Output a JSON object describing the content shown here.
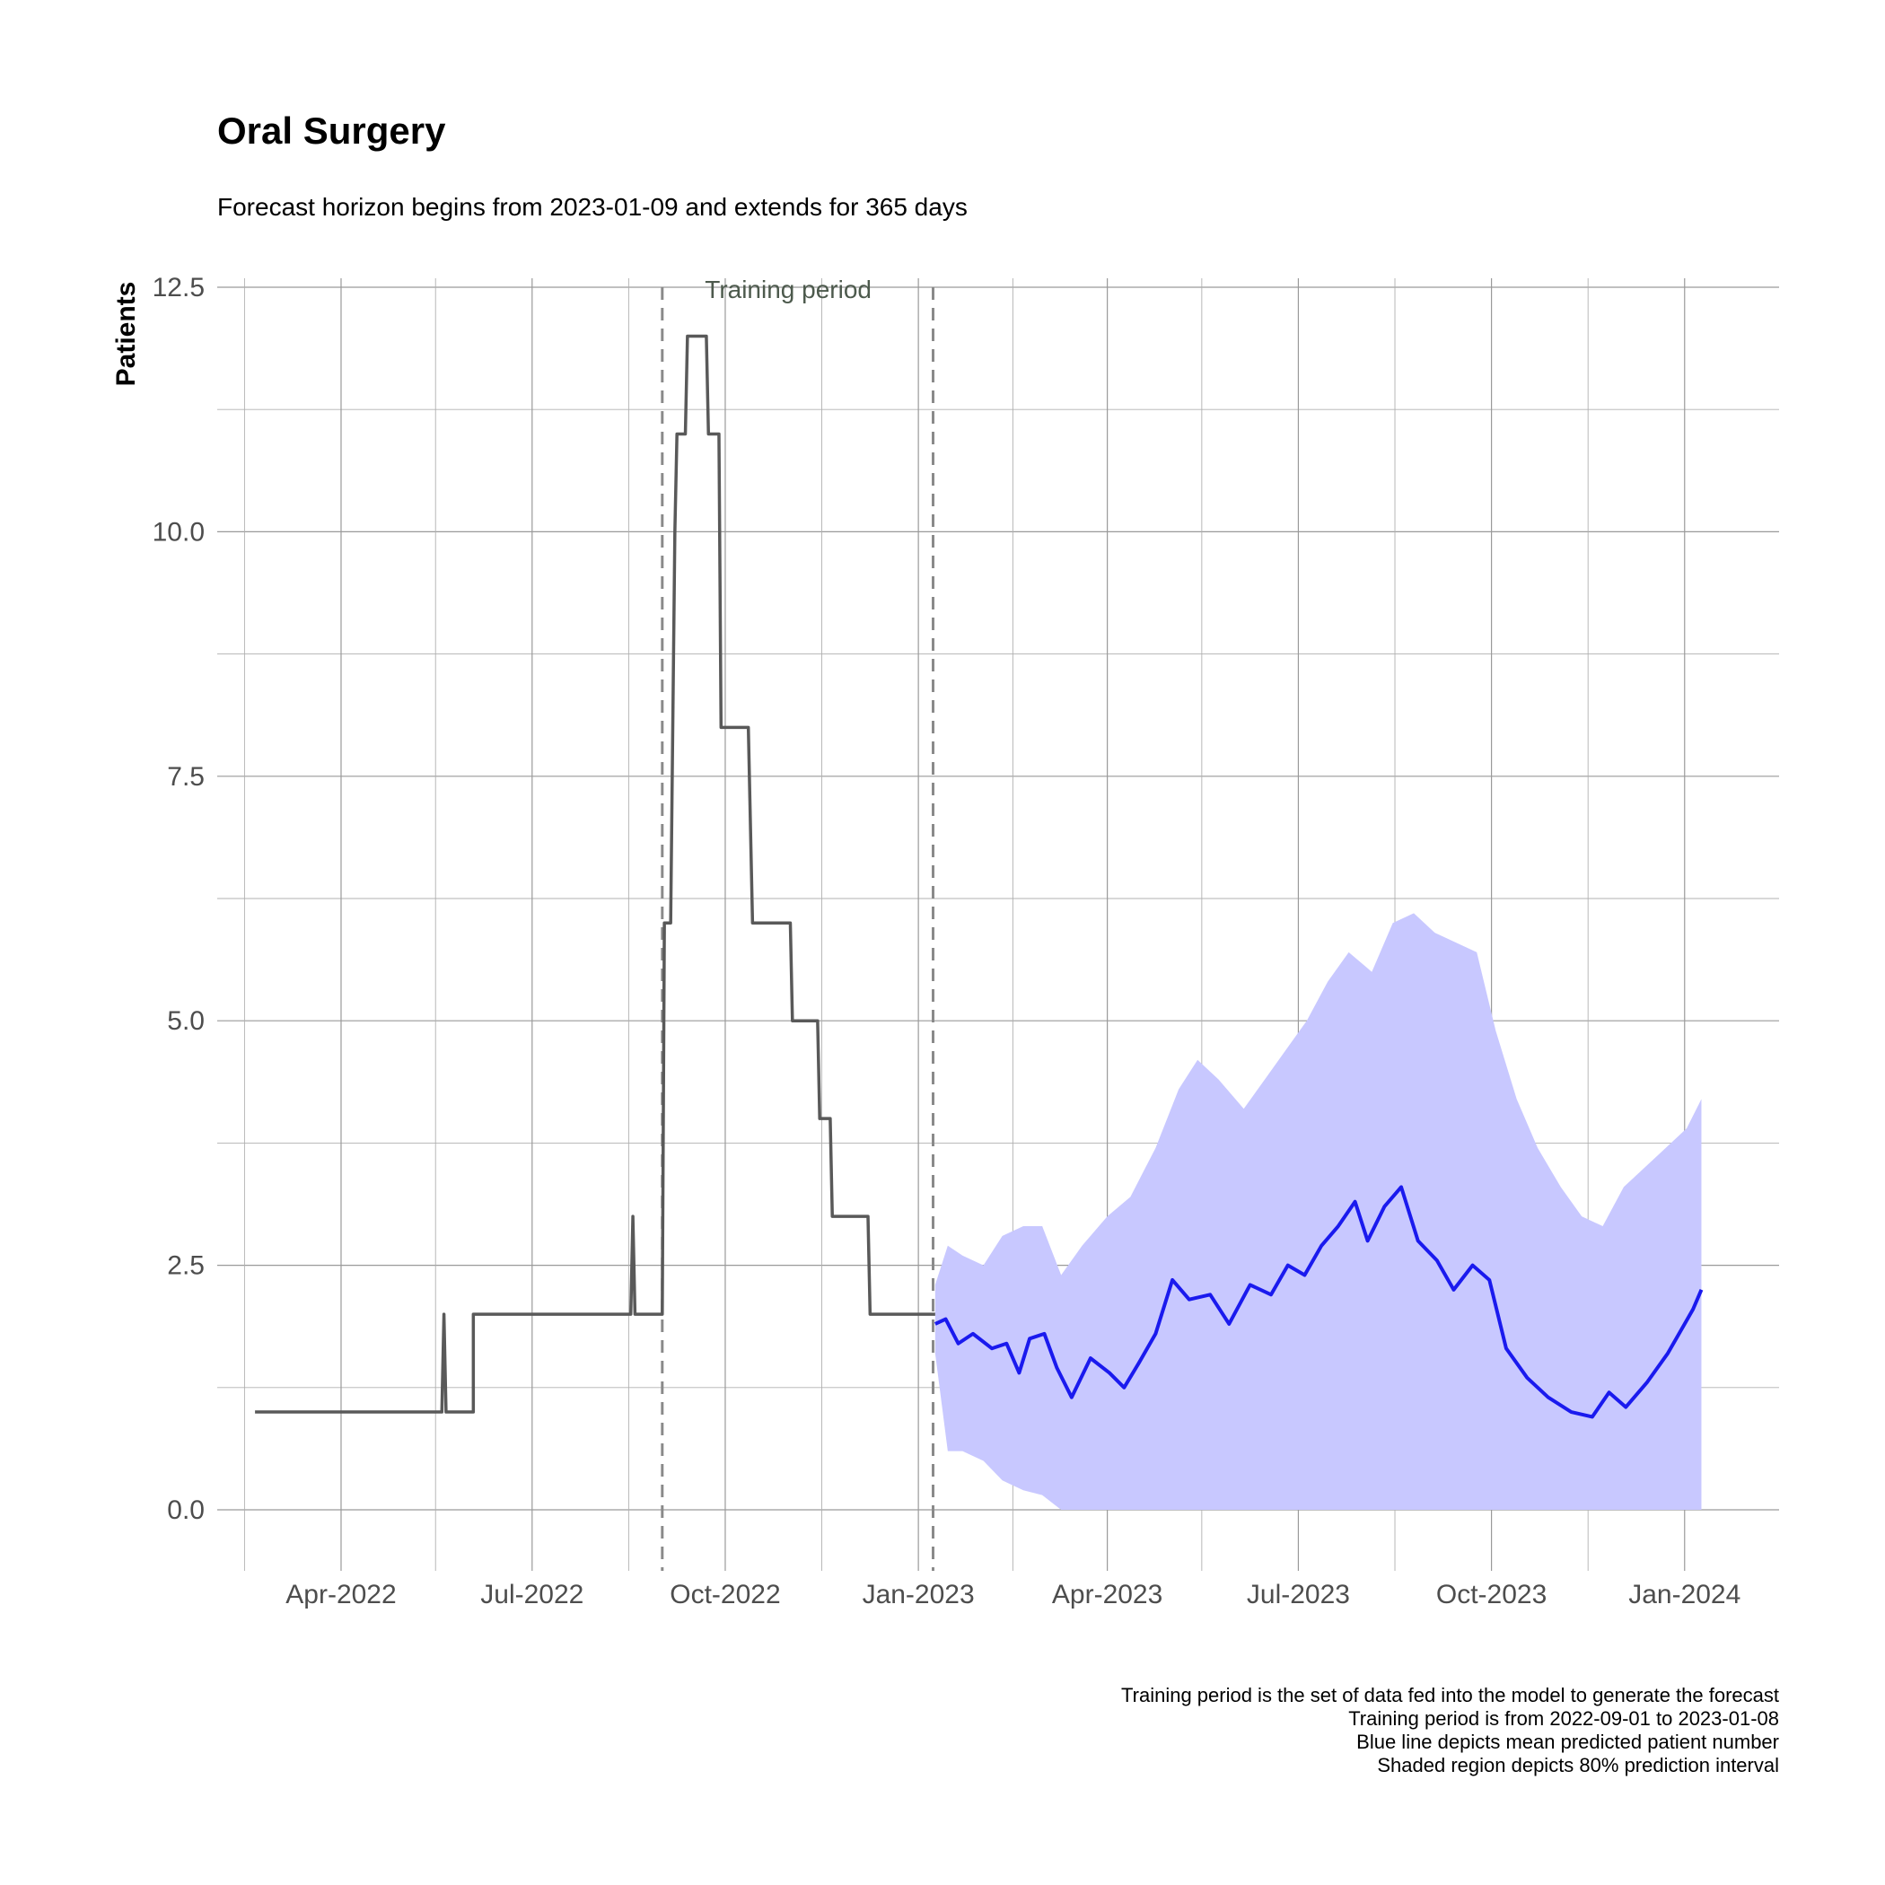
{
  "chart_data": {
    "type": "line",
    "title": "Oral Surgery",
    "subtitle": "Forecast horizon begins from 2023-01-09 and extends for 365 days",
    "xlabel": "",
    "ylabel": "Patients",
    "xlim": [
      "2022-02-01",
      "2024-02-15"
    ],
    "ylim": [
      0,
      12.5
    ],
    "y_ticks": [
      0.0,
      2.5,
      5.0,
      7.5,
      10.0,
      12.5
    ],
    "y_tick_labels": [
      "0.0",
      "2.5",
      "5.0",
      "7.5",
      "10.0",
      "12.5"
    ],
    "x_ticks": [
      "2022-04-01",
      "2022-07-01",
      "2022-10-01",
      "2023-01-01",
      "2023-04-01",
      "2023-07-01",
      "2023-10-01",
      "2024-01-01"
    ],
    "x_tick_labels": [
      "Apr-2022",
      "Jul-2022",
      "Oct-2022",
      "Jan-2023",
      "Apr-2023",
      "Jul-2023",
      "Oct-2023",
      "Jan-2024"
    ],
    "grid": true,
    "vlines": [
      {
        "x": "2022-09-01",
        "style": "dashed"
      },
      {
        "x": "2023-01-08",
        "style": "dashed"
      }
    ],
    "annotation": {
      "text": "Training period",
      "x": "2022-10-31",
      "y": 12.5
    },
    "caption": [
      "Training period is the set of data fed into the model to generate the forecast",
      "Training period is from 2022-09-01 to 2023-01-08",
      "Blue line depicts mean predicted patient number",
      "Shaded region depicts 80% prediction interval"
    ],
    "series": [
      {
        "role": "observed",
        "color": "#595959",
        "step": true,
        "points": [
          [
            "2022-02-19",
            1
          ],
          [
            "2022-05-19",
            1
          ],
          [
            "2022-05-20",
            2
          ],
          [
            "2022-05-21",
            1
          ],
          [
            "2022-06-03",
            1
          ],
          [
            "2022-06-03",
            2
          ],
          [
            "2022-08-17",
            2
          ],
          [
            "2022-08-18",
            3
          ],
          [
            "2022-08-19",
            2
          ],
          [
            "2022-09-01",
            2
          ],
          [
            "2022-09-02",
            6
          ],
          [
            "2022-09-05",
            6
          ],
          [
            "2022-09-07",
            10
          ],
          [
            "2022-09-08",
            11
          ],
          [
            "2022-09-12",
            11
          ],
          [
            "2022-09-13",
            12
          ],
          [
            "2022-09-22",
            12
          ],
          [
            "2022-09-23",
            11
          ],
          [
            "2022-09-28",
            11
          ],
          [
            "2022-09-29",
            8
          ],
          [
            "2022-10-12",
            8
          ],
          [
            "2022-10-14",
            6
          ],
          [
            "2022-11-01",
            6
          ],
          [
            "2022-11-02",
            5
          ],
          [
            "2022-11-14",
            5
          ],
          [
            "2022-11-15",
            4
          ],
          [
            "2022-11-20",
            4
          ],
          [
            "2022-11-21",
            3
          ],
          [
            "2022-12-08",
            3
          ],
          [
            "2022-12-09",
            2
          ],
          [
            "2023-01-09",
            2
          ]
        ]
      },
      {
        "role": "forecast-mean",
        "color": "#1a1aee",
        "points": [
          [
            "2023-01-09",
            1.9
          ],
          [
            "2023-01-14",
            1.95
          ],
          [
            "2023-01-20",
            1.7
          ],
          [
            "2023-01-27",
            1.8
          ],
          [
            "2023-02-05",
            1.65
          ],
          [
            "2023-02-12",
            1.7
          ],
          [
            "2023-02-18",
            1.4
          ],
          [
            "2023-02-23",
            1.75
          ],
          [
            "2023-03-02",
            1.8
          ],
          [
            "2023-03-08",
            1.45
          ],
          [
            "2023-03-15",
            1.15
          ],
          [
            "2023-03-24",
            1.55
          ],
          [
            "2023-04-02",
            1.4
          ],
          [
            "2023-04-09",
            1.25
          ],
          [
            "2023-04-16",
            1.5
          ],
          [
            "2023-04-24",
            1.8
          ],
          [
            "2023-05-02",
            2.35
          ],
          [
            "2023-05-10",
            2.15
          ],
          [
            "2023-05-20",
            2.2
          ],
          [
            "2023-05-29",
            1.9
          ],
          [
            "2023-06-08",
            2.3
          ],
          [
            "2023-06-18",
            2.2
          ],
          [
            "2023-06-26",
            2.5
          ],
          [
            "2023-07-04",
            2.4
          ],
          [
            "2023-07-12",
            2.7
          ],
          [
            "2023-07-20",
            2.9
          ],
          [
            "2023-07-28",
            3.15
          ],
          [
            "2023-08-03",
            2.75
          ],
          [
            "2023-08-11",
            3.1
          ],
          [
            "2023-08-19",
            3.3
          ],
          [
            "2023-08-27",
            2.75
          ],
          [
            "2023-09-05",
            2.55
          ],
          [
            "2023-09-13",
            2.25
          ],
          [
            "2023-09-22",
            2.5
          ],
          [
            "2023-09-30",
            2.35
          ],
          [
            "2023-10-08",
            1.65
          ],
          [
            "2023-10-18",
            1.35
          ],
          [
            "2023-10-28",
            1.15
          ],
          [
            "2023-11-08",
            1.0
          ],
          [
            "2023-11-18",
            0.95
          ],
          [
            "2023-11-26",
            1.2
          ],
          [
            "2023-12-04",
            1.05
          ],
          [
            "2023-12-14",
            1.3
          ],
          [
            "2023-12-24",
            1.6
          ],
          [
            "2024-01-01",
            1.9
          ],
          [
            "2024-01-05",
            2.05
          ],
          [
            "2024-01-09",
            2.25
          ]
        ]
      },
      {
        "role": "prediction-interval-80",
        "color": "#c8c8ff",
        "points": [
          [
            "2023-01-09",
            1.6,
            2.3
          ],
          [
            "2023-01-15",
            0.6,
            2.7
          ],
          [
            "2023-01-22",
            0.6,
            2.6
          ],
          [
            "2023-02-01",
            0.5,
            2.5
          ],
          [
            "2023-02-10",
            0.3,
            2.8
          ],
          [
            "2023-02-20",
            0.2,
            2.9
          ],
          [
            "2023-03-01",
            0.15,
            2.9
          ],
          [
            "2023-03-10",
            0.0,
            2.4
          ],
          [
            "2023-03-20",
            0.0,
            2.7
          ],
          [
            "2023-04-01",
            0.0,
            3.0
          ],
          [
            "2023-04-12",
            0.0,
            3.2
          ],
          [
            "2023-04-24",
            0.0,
            3.7
          ],
          [
            "2023-05-05",
            0.0,
            4.3
          ],
          [
            "2023-05-14",
            0.0,
            4.6
          ],
          [
            "2023-05-24",
            0.0,
            4.4
          ],
          [
            "2023-06-05",
            0.0,
            4.1
          ],
          [
            "2023-06-15",
            0.0,
            4.4
          ],
          [
            "2023-06-25",
            0.0,
            4.7
          ],
          [
            "2023-07-05",
            0.0,
            5.0
          ],
          [
            "2023-07-15",
            0.0,
            5.4
          ],
          [
            "2023-07-25",
            0.0,
            5.7
          ],
          [
            "2023-08-05",
            0.0,
            5.5
          ],
          [
            "2023-08-15",
            0.0,
            6.0
          ],
          [
            "2023-08-25",
            0.0,
            6.1
          ],
          [
            "2023-09-04",
            0.0,
            5.9
          ],
          [
            "2023-09-14",
            0.0,
            5.8
          ],
          [
            "2023-09-24",
            0.0,
            5.7
          ],
          [
            "2023-10-03",
            0.0,
            4.9
          ],
          [
            "2023-10-13",
            0.0,
            4.2
          ],
          [
            "2023-10-23",
            0.0,
            3.7
          ],
          [
            "2023-11-03",
            0.0,
            3.3
          ],
          [
            "2023-11-13",
            0.0,
            3.0
          ],
          [
            "2023-11-23",
            0.0,
            2.9
          ],
          [
            "2023-12-03",
            0.0,
            3.3
          ],
          [
            "2023-12-13",
            0.0,
            3.5
          ],
          [
            "2023-12-23",
            0.0,
            3.7
          ],
          [
            "2024-01-02",
            0.0,
            3.9
          ],
          [
            "2024-01-09",
            0.0,
            4.2
          ]
        ]
      }
    ]
  }
}
